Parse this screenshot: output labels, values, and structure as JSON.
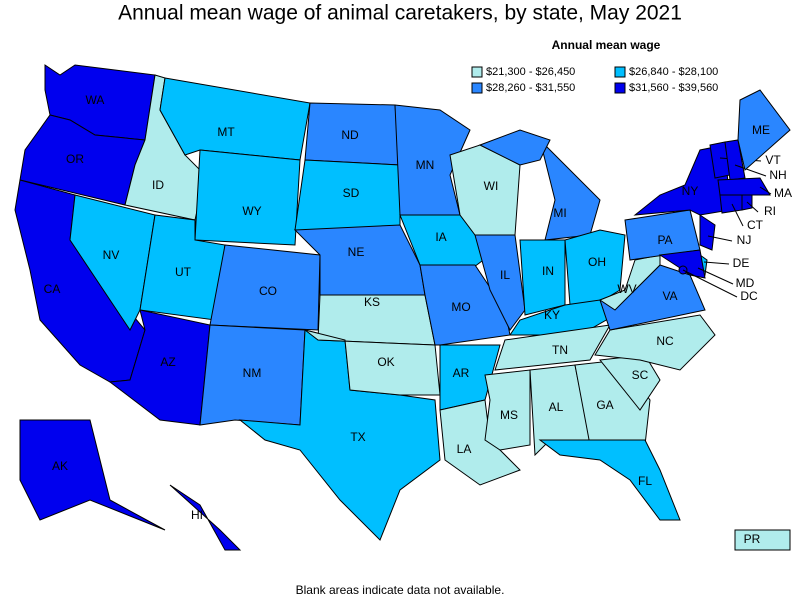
{
  "title": "Annual mean wage of animal caretakers, by state, May 2021",
  "legend": {
    "title": "Annual mean wage",
    "classes": [
      {
        "label": "$21,300 - $26,450",
        "color": "#b0ecec"
      },
      {
        "label": "$26,840 - $28,100",
        "color": "#00bfff"
      },
      {
        "label": "$28,260 - $31,550",
        "color": "#2a86ff"
      },
      {
        "label": "$31,560 - $39,560",
        "color": "#0000ee"
      }
    ]
  },
  "states": [
    {
      "label": "WA",
      "class": 3
    },
    {
      "label": "OR",
      "class": 3
    },
    {
      "label": "CA",
      "class": 3
    },
    {
      "label": "ID",
      "class": 0
    },
    {
      "label": "MT",
      "class": 1
    },
    {
      "label": "WY",
      "class": 1
    },
    {
      "label": "NV",
      "class": 1
    },
    {
      "label": "UT",
      "class": 1
    },
    {
      "label": "CO",
      "class": 2
    },
    {
      "label": "AZ",
      "class": 3
    },
    {
      "label": "NM",
      "class": 2
    },
    {
      "label": "TX",
      "class": 1
    },
    {
      "label": "ND",
      "class": 2
    },
    {
      "label": "SD",
      "class": 1
    },
    {
      "label": "NE",
      "class": 2
    },
    {
      "label": "KS",
      "class": 0
    },
    {
      "label": "OK",
      "class": 0
    },
    {
      "label": "MN",
      "class": 2
    },
    {
      "label": "IA",
      "class": 1
    },
    {
      "label": "MO",
      "class": 2
    },
    {
      "label": "AR",
      "class": 1
    },
    {
      "label": "LA",
      "class": 0
    },
    {
      "label": "WI",
      "class": 0
    },
    {
      "label": "IL",
      "class": 2
    },
    {
      "label": "MI",
      "class": 2
    },
    {
      "label": "IN",
      "class": 1
    },
    {
      "label": "OH",
      "class": 1
    },
    {
      "label": "KY",
      "class": 1
    },
    {
      "label": "TN",
      "class": 0
    },
    {
      "label": "MS",
      "class": 0
    },
    {
      "label": "AL",
      "class": 0
    },
    {
      "label": "GA",
      "class": 0
    },
    {
      "label": "FL",
      "class": 1
    },
    {
      "label": "SC",
      "class": 0
    },
    {
      "label": "NC",
      "class": 0
    },
    {
      "label": "VA",
      "class": 2
    },
    {
      "label": "WV",
      "class": 0
    },
    {
      "label": "PA",
      "class": 2
    },
    {
      "label": "NY",
      "class": 3
    },
    {
      "label": "NJ",
      "class": 3
    },
    {
      "label": "DE",
      "class": 1
    },
    {
      "label": "MD",
      "class": 3
    },
    {
      "label": "VT",
      "class": 3
    },
    {
      "label": "NH",
      "class": 3
    },
    {
      "label": "ME",
      "class": 2
    },
    {
      "label": "MA",
      "class": 3
    },
    {
      "label": "CT",
      "class": 3
    },
    {
      "label": "RI",
      "class": 3
    },
    {
      "label": "DC",
      "class": 3
    },
    {
      "label": "AK",
      "class": 3
    },
    {
      "label": "HI",
      "class": 3
    },
    {
      "label": "PR",
      "class": 0
    }
  ],
  "footnote": "Blank areas indicate data not available."
}
